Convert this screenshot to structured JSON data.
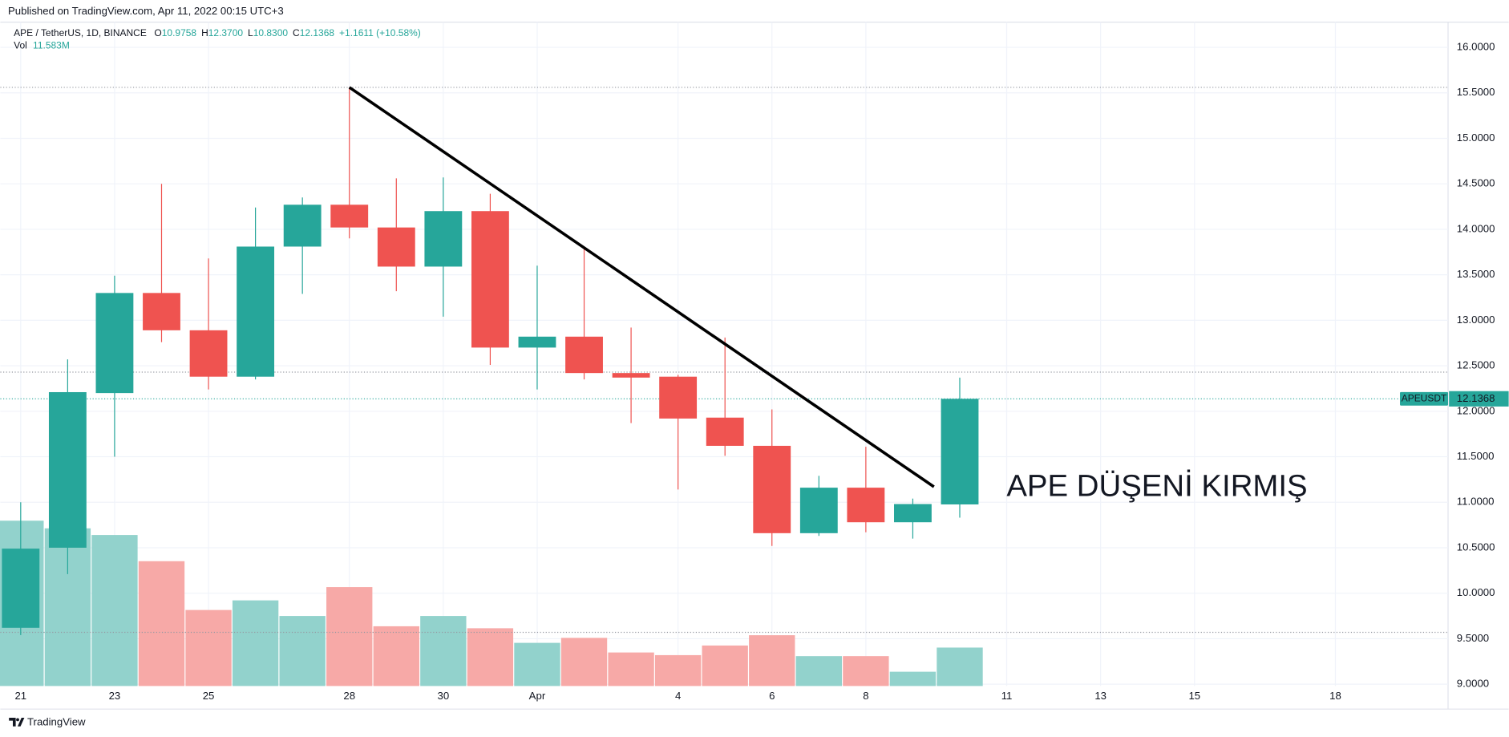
{
  "header": {
    "published": "Published on TradingView.com, Apr 11, 2022 00:15 UTC+3"
  },
  "footer": {
    "brand": "TradingView"
  },
  "chart_data": {
    "type": "candlestick",
    "symbol": "APE / TetherUS, 1D, BINANCE",
    "ohlc_legend": [
      {
        "label": "O",
        "value": "10.9758"
      },
      {
        "label": "H",
        "value": "12.3700"
      },
      {
        "label": "L",
        "value": "10.8300"
      },
      {
        "label": "C",
        "value": "12.1368"
      }
    ],
    "change": "+1.1611 (+10.58%)",
    "volume_label": "Vol",
    "volume_value": "11.583M",
    "price_label": "APEUSDT",
    "annotation": "APE DÜŞENİ KIRMIŞ",
    "x": [
      0,
      1,
      2,
      3,
      4,
      5,
      6,
      7,
      8,
      9,
      10,
      11,
      12,
      13,
      14,
      15,
      16,
      17,
      18,
      19,
      20
    ],
    "open": [
      9.62,
      10.5,
      12.2,
      13.3,
      12.89,
      12.38,
      13.81,
      14.27,
      14.02,
      13.59,
      14.2,
      12.7,
      12.82,
      12.42,
      12.38,
      11.93,
      11.62,
      10.66,
      11.16,
      10.78,
      10.9758
    ],
    "high": [
      11.0,
      12.57,
      13.49,
      14.5,
      13.68,
      14.24,
      14.35,
      15.56,
      14.56,
      14.57,
      14.39,
      13.6,
      13.8,
      12.92,
      12.4,
      12.81,
      12.02,
      11.29,
      11.61,
      11.04,
      12.37
    ],
    "low": [
      9.54,
      10.21,
      11.5,
      12.76,
      12.24,
      12.35,
      13.29,
      13.9,
      13.32,
      13.04,
      12.51,
      12.24,
      12.35,
      11.87,
      11.14,
      11.51,
      10.52,
      10.63,
      10.67,
      10.6,
      10.83
    ],
    "close": [
      10.49,
      12.21,
      13.3,
      12.89,
      12.38,
      13.81,
      14.27,
      14.02,
      13.59,
      14.2,
      12.7,
      12.82,
      12.42,
      12.37,
      11.92,
      11.62,
      10.66,
      11.16,
      10.78,
      10.98,
      12.1368
    ],
    "volume": [
      49.8,
      47.5,
      45.5,
      37.6,
      22.9,
      25.8,
      21.1,
      29.8,
      18.0,
      21.1,
      17.4,
      13.0,
      14.5,
      10.1,
      9.3,
      12.2,
      15.3,
      9.0,
      9.0,
      4.3,
      11.583
    ],
    "volume_lim": [
      0,
      60
    ],
    "up_color": "#26a69a",
    "down_color": "#ef5350",
    "volume_up_color": "#92d2cc",
    "volume_down_color": "#f7a9a7",
    "xlim": [
      -0.27,
      30.4
    ],
    "xticks": [
      {
        "value": 0,
        "label": "21"
      },
      {
        "value": 2,
        "label": "23"
      },
      {
        "value": 4,
        "label": "25"
      },
      {
        "value": 7,
        "label": "28"
      },
      {
        "value": 9,
        "label": "30"
      },
      {
        "value": 11,
        "label": "Apr"
      },
      {
        "value": 14,
        "label": "4"
      },
      {
        "value": 16,
        "label": "6"
      },
      {
        "value": 18,
        "label": "8"
      },
      {
        "value": 21,
        "label": "11"
      },
      {
        "value": 23,
        "label": "13"
      },
      {
        "value": 25,
        "label": "15"
      },
      {
        "value": 28,
        "label": "18"
      }
    ],
    "ylim": [
      8.98,
      16.33
    ],
    "yticks": [
      {
        "value": 9,
        "label": "9.0000"
      },
      {
        "value": 9.5,
        "label": "9.5000"
      },
      {
        "value": 10,
        "label": "10.0000"
      },
      {
        "value": 10.5,
        "label": "10.5000"
      },
      {
        "value": 11,
        "label": "11.0000"
      },
      {
        "value": 11.5,
        "label": "11.5000"
      },
      {
        "value": 12,
        "label": "12.0000"
      },
      {
        "value": 12.5,
        "label": "12.5000"
      },
      {
        "value": 13,
        "label": "13.0000"
      },
      {
        "value": 13.5,
        "label": "13.5000"
      },
      {
        "value": 14,
        "label": "14.0000"
      },
      {
        "value": 14.5,
        "label": "14.5000"
      },
      {
        "value": 15,
        "label": "15.0000"
      },
      {
        "value": 15.5,
        "label": "15.5000"
      },
      {
        "value": 16,
        "label": "16.0000"
      }
    ],
    "hlines": [
      15.56,
      12.43,
      9.57
    ],
    "trendline": {
      "x": [
        7,
        19.45
      ],
      "y": [
        15.56,
        11.17
      ],
      "color": "#000000"
    },
    "grid": true
  }
}
